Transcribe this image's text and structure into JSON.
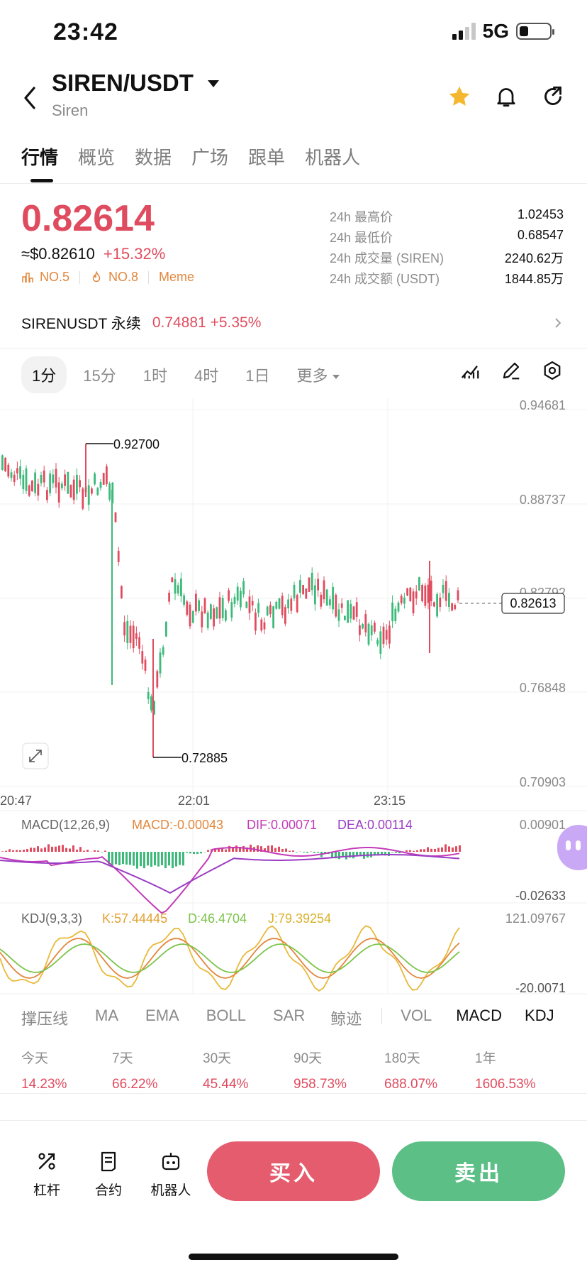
{
  "status_bar": {
    "time": "23:42",
    "network": "5G"
  },
  "header": {
    "pair": "SIREN/USDT",
    "name": "Siren",
    "icons": [
      "back-icon",
      "star-icon",
      "bell-icon",
      "share-icon"
    ],
    "star_color": "#f5b72f"
  },
  "tabs": [
    "行情",
    "概览",
    "数据",
    "广场",
    "跟单",
    "机器人"
  ],
  "ticker": {
    "price": "0.82614",
    "usd": "≈$0.82610",
    "change": "+15.32%",
    "tags": [
      "NO.5",
      "NO.8",
      "Meme"
    ],
    "stats": [
      {
        "label": "24h 最高价",
        "value": "1.02453"
      },
      {
        "label": "24h 最低价",
        "value": "0.68547"
      },
      {
        "label": "24h 成交量 (SIREN)",
        "value": "2240.62万"
      },
      {
        "label": "24h 成交额 (USDT)",
        "value": "1844.85万"
      }
    ],
    "up_color": "#e04c5f",
    "down_color": "#3dba7a"
  },
  "perpetual": {
    "label": "SIRENUSDT 永续",
    "price": "0.74881",
    "change": "+5.35%"
  },
  "intervals": {
    "items": [
      "1分",
      "15分",
      "1时",
      "4时",
      "1日"
    ],
    "more": "更多",
    "active": "1分"
  },
  "chart": {
    "y_ticks": [
      "0.94681",
      "0.88737",
      "0.82792",
      "0.76848",
      "0.70903"
    ],
    "x_ticks": [
      "20:47",
      "22:01",
      "23:15"
    ],
    "high_label": "0.92700",
    "low_label": "0.72885",
    "current_label": "0.82613",
    "macd": {
      "label": "MACD(12,26,9)",
      "macd": "MACD:-0.00043",
      "dif": "DIF:0.00071",
      "dea": "DEA:0.00114",
      "top": "0.00901",
      "bottom": "-0.02633"
    },
    "kdj": {
      "label": "KDJ(9,3,3)",
      "k": "K:57.44445",
      "d": "D:46.4704",
      "j": "J:79.39254",
      "top": "121.09767",
      "bottom": "-20.0071"
    }
  },
  "indicators": [
    "撑压线",
    "MA",
    "EMA",
    "BOLL",
    "SAR",
    "鲸迹",
    "VOL",
    "MACD",
    "KDJ"
  ],
  "performance": [
    {
      "label": "今天",
      "value": "14.23%"
    },
    {
      "label": "7天",
      "value": "66.22%"
    },
    {
      "label": "30天",
      "value": "45.44%"
    },
    {
      "label": "90天",
      "value": "958.73%"
    },
    {
      "label": "180天",
      "value": "688.07%"
    },
    {
      "label": "1年",
      "value": "1606.53%"
    }
  ],
  "bottom": {
    "leverage": "杠杆",
    "contract": "合约",
    "bot": "机器人",
    "buy": "买入",
    "sell": "卖出"
  }
}
